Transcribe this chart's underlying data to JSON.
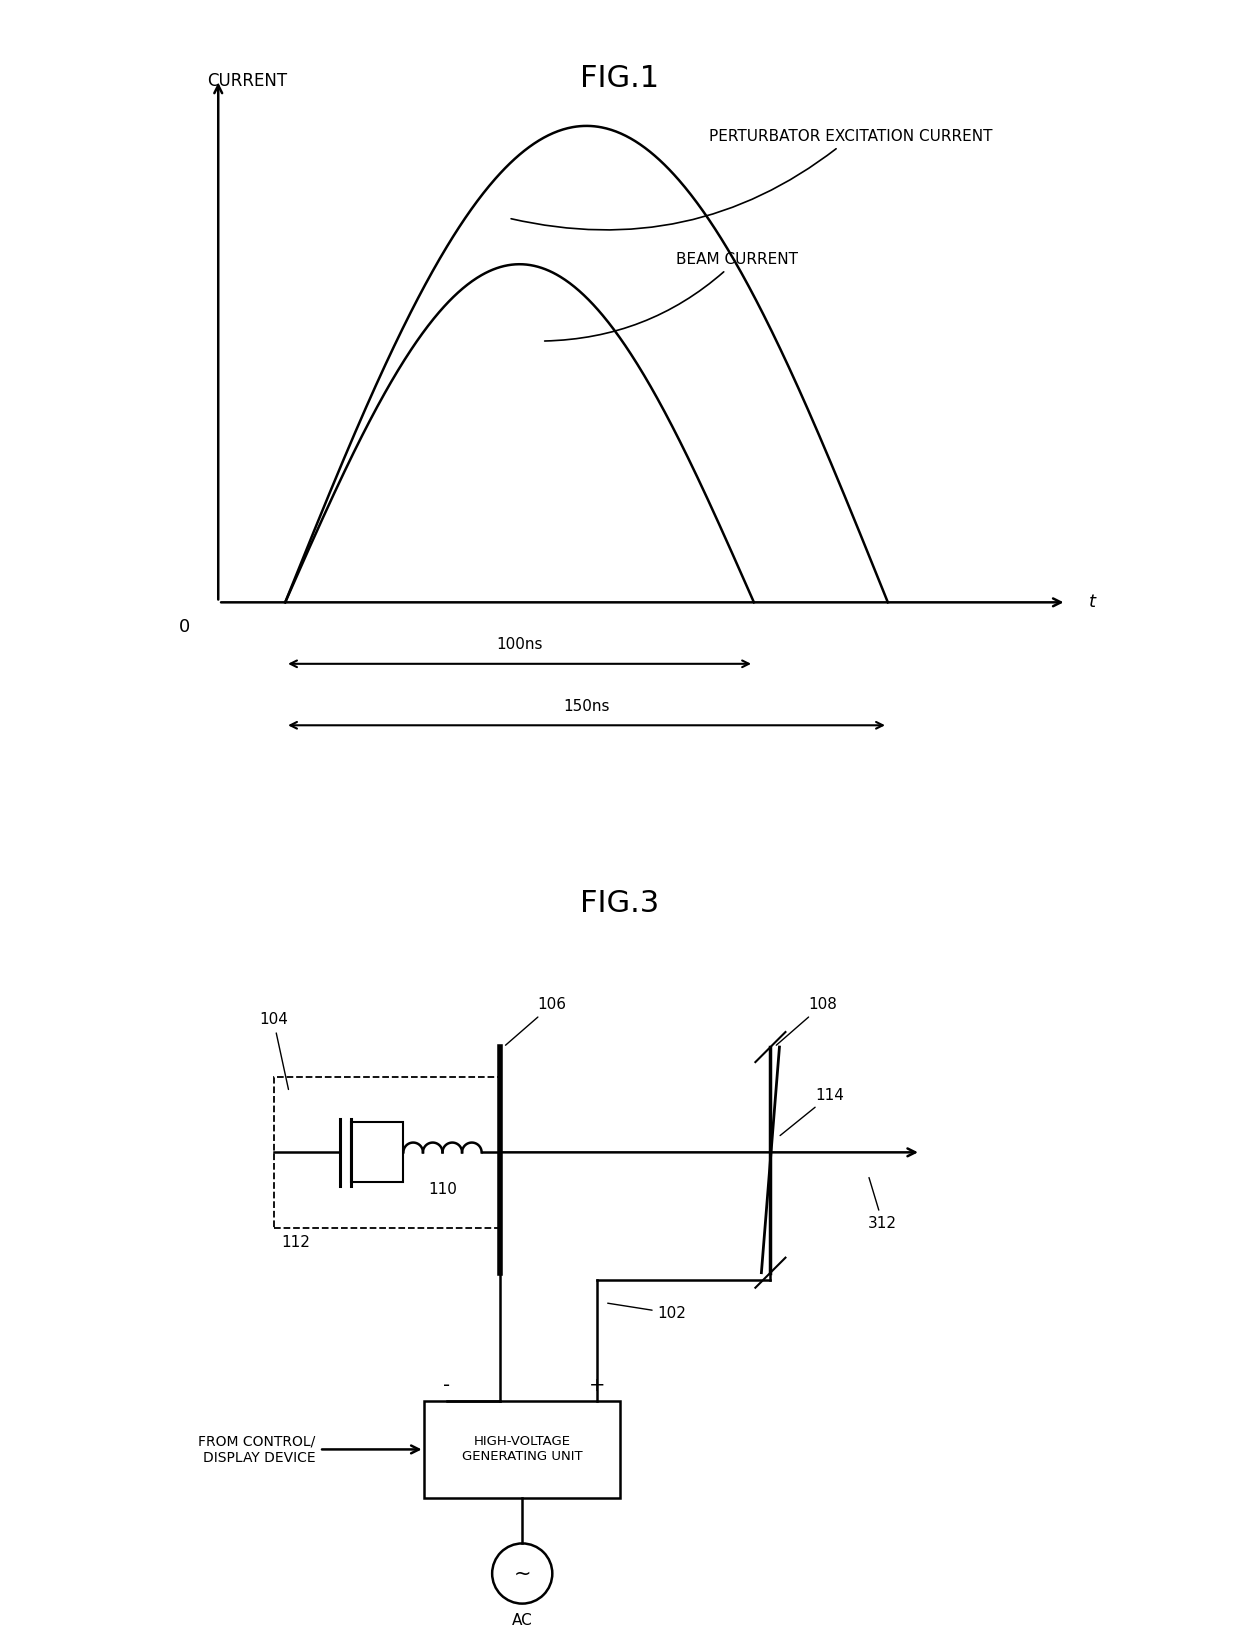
{
  "fig1_title": "FIG.1",
  "fig3_title": "FIG.3",
  "ylabel": "CURRENT",
  "xlabel": "t",
  "origin_label": "0",
  "label_100ns": "100ns",
  "label_150ns": "150ns",
  "label_perturbator": "PERTURBATOR EXCITATION CURRENT",
  "label_beam": "BEAM CURRENT",
  "bg_color": "#ffffff",
  "line_color": "#000000",
  "labels_fig3": {
    "102": "102",
    "104": "104",
    "106": "106",
    "108": "108",
    "110": "110",
    "112": "112",
    "114": "114",
    "312": "312",
    "hvg": "HIGH-VOLTAGE\nGENERATING UNIT",
    "ac": "AC",
    "from_ctrl": "FROM CONTROL/\nDISPLAY DEVICE"
  }
}
